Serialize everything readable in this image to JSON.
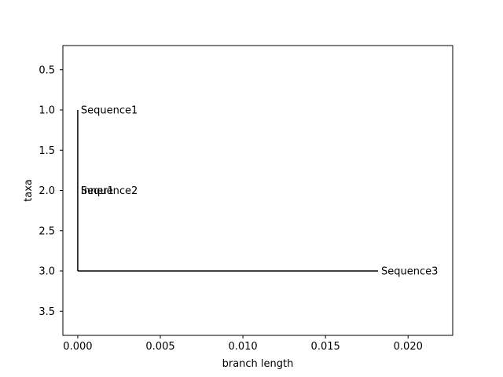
{
  "chart_data": {
    "type": "tree",
    "xlabel": "branch length",
    "ylabel": "taxa",
    "xlim": [
      -0.0009,
      0.0227
    ],
    "ylim": [
      3.8,
      0.2
    ],
    "xticks": [
      0.0,
      0.005,
      0.01,
      0.015,
      0.02
    ],
    "xtick_labels": [
      "0.000",
      "0.005",
      "0.010",
      "0.015",
      "0.020"
    ],
    "yticks": [
      0.5,
      1.0,
      1.5,
      2.0,
      2.5,
      3.0,
      3.5
    ],
    "ytick_labels": [
      "0.5",
      "1.0",
      "1.5",
      "2.0",
      "2.5",
      "3.0",
      "3.5"
    ],
    "grid": false,
    "branches": [
      {
        "x0": 0.0,
        "x1": 0.0,
        "y": 1.0
      },
      {
        "x0": 0.0,
        "x1": 0.0,
        "y": 2.0
      },
      {
        "x0": 0.0,
        "x1": 0.0,
        "y": 2.0
      },
      {
        "x0": 0.0,
        "x1": 0.01818,
        "y": 3.0
      }
    ],
    "clades": [
      {
        "x": 0.0,
        "y0": 1.0,
        "y1": 3.0
      }
    ],
    "taxa": [
      {
        "label": "Sequence1",
        "x": 0.0,
        "y": 1.0
      },
      {
        "label": "Sequence2",
        "x": 0.0,
        "y": 2.0
      },
      {
        "label": "Inner1",
        "x": 0.0,
        "y": 2.0
      },
      {
        "label": "Sequence3",
        "x": 0.01818,
        "y": 3.0
      }
    ],
    "line_color": "#000000"
  }
}
